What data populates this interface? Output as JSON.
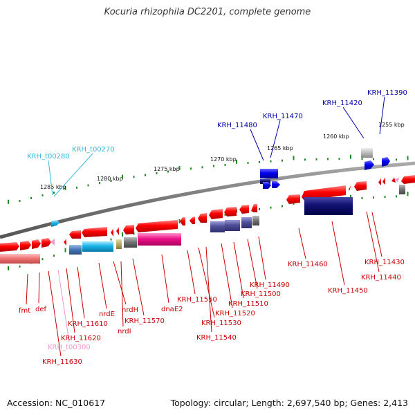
{
  "title": "Kocuria rhizophila DC2201, complete genome",
  "footer": {
    "accession": "Accession: NC_010617",
    "topology": "Topology: circular; Length: 2,697,540 bp; Genes: 2,413"
  },
  "colors": {
    "backbone": "#808080",
    "red_label": "#cc0000",
    "blue_label": "#0000aa",
    "cyan_label": "#33bbdd",
    "pink_label": "#ee99cc",
    "tick": "#228822"
  },
  "scale_labels": [
    "1285 kbp",
    "1280 kbp",
    "1275 kbp",
    "1270 kbp",
    "1265 kbp",
    "1260 kbp",
    "1255 kbp"
  ],
  "gene_labels": {
    "top": [
      {
        "text": "KRH_t00280",
        "color": "cyan"
      },
      {
        "text": "KRH_t00270",
        "color": "cyan"
      },
      {
        "text": "KRH_11480",
        "color": "blue"
      },
      {
        "text": "KRH_11470",
        "color": "blue"
      },
      {
        "text": "KRH_11420",
        "color": "blue"
      },
      {
        "text": "KRH_11390",
        "color": "blue"
      }
    ],
    "bottom": [
      {
        "text": "fmt",
        "color": "red"
      },
      {
        "text": "def",
        "color": "red"
      },
      {
        "text": "KRH_11610",
        "color": "red"
      },
      {
        "text": "KRH_11620",
        "color": "red"
      },
      {
        "text": "KRH_t00300",
        "color": "pink"
      },
      {
        "text": "KRH_11630",
        "color": "red"
      },
      {
        "text": "nrdE",
        "color": "red"
      },
      {
        "text": "nrdH",
        "color": "red"
      },
      {
        "text": "nrdI",
        "color": "red"
      },
      {
        "text": "KRH_11570",
        "color": "red"
      },
      {
        "text": "dnaE2",
        "color": "red"
      },
      {
        "text": "KRH_11550",
        "color": "red"
      },
      {
        "text": "KRH_11530",
        "color": "red"
      },
      {
        "text": "KRH_11540",
        "color": "red"
      },
      {
        "text": "KRH_11520",
        "color": "red"
      },
      {
        "text": "KRH_11510",
        "color": "red"
      },
      {
        "text": "KRH_11500",
        "color": "red"
      },
      {
        "text": "KRH_11490",
        "color": "red"
      },
      {
        "text": "KRH_11460",
        "color": "red"
      },
      {
        "text": "KRH_11450",
        "color": "red"
      },
      {
        "text": "KRH_11440",
        "color": "red"
      },
      {
        "text": "KRH_11430",
        "color": "red"
      }
    ]
  }
}
